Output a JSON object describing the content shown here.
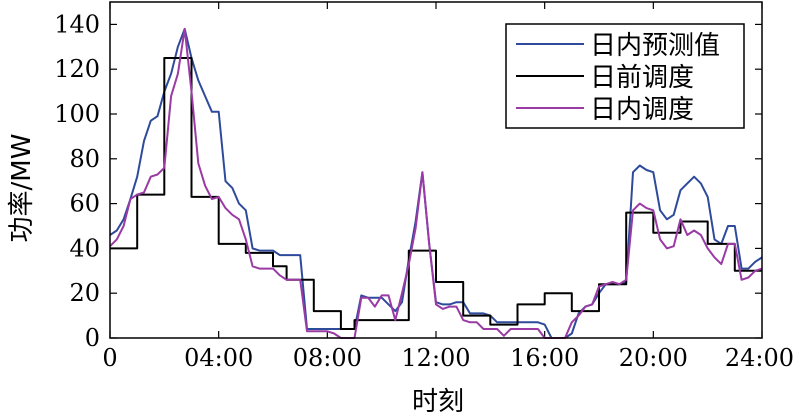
{
  "chart_data": {
    "type": "line",
    "xlabel": "时刻",
    "ylabel": "功率/MW",
    "xlim": [
      0,
      24
    ],
    "ylim": [
      0,
      150
    ],
    "x_ticks": [
      0,
      4,
      8,
      12,
      16,
      20,
      24
    ],
    "x_tick_labels": [
      "0",
      "04:00",
      "08:00",
      "12:00",
      "16:00",
      "20:00",
      "24:00"
    ],
    "y_ticks": [
      0,
      20,
      40,
      60,
      80,
      100,
      120,
      140
    ],
    "y_tick_labels": [
      "0",
      "20",
      "40",
      "60",
      "80",
      "100",
      "120",
      "140"
    ],
    "grid": false,
    "legend_position": "top-right",
    "series": [
      {
        "name": "日内预测值",
        "color": "#2e4a9b",
        "step": false,
        "points": [
          [
            0,
            46
          ],
          [
            0.25,
            48
          ],
          [
            0.5,
            53
          ],
          [
            0.75,
            62
          ],
          [
            1,
            72
          ],
          [
            1.25,
            88
          ],
          [
            1.5,
            97
          ],
          [
            1.75,
            99
          ],
          [
            2,
            110
          ],
          [
            2.25,
            118
          ],
          [
            2.5,
            130
          ],
          [
            2.75,
            138
          ],
          [
            3,
            125
          ],
          [
            3.25,
            115
          ],
          [
            3.5,
            108
          ],
          [
            3.75,
            101
          ],
          [
            4,
            101
          ],
          [
            4.25,
            70
          ],
          [
            4.5,
            67
          ],
          [
            4.75,
            60
          ],
          [
            5,
            57
          ],
          [
            5.25,
            40
          ],
          [
            5.5,
            39
          ],
          [
            5.75,
            39
          ],
          [
            6,
            39
          ],
          [
            6.25,
            37
          ],
          [
            6.5,
            37
          ],
          [
            6.75,
            37
          ],
          [
            7,
            37
          ],
          [
            7.25,
            4
          ],
          [
            7.5,
            4
          ],
          [
            7.75,
            4
          ],
          [
            8,
            4
          ],
          [
            8.25,
            4
          ],
          [
            8.5,
            4
          ],
          [
            8.75,
            4
          ],
          [
            9,
            4
          ],
          [
            9.25,
            19
          ],
          [
            9.5,
            18
          ],
          [
            9.75,
            18
          ],
          [
            10,
            18
          ],
          [
            10.25,
            15
          ],
          [
            10.5,
            12
          ],
          [
            10.75,
            16
          ],
          [
            11,
            35
          ],
          [
            11.25,
            52
          ],
          [
            11.5,
            74
          ],
          [
            11.75,
            42
          ],
          [
            12,
            16
          ],
          [
            12.25,
            15
          ],
          [
            12.5,
            15
          ],
          [
            12.75,
            16
          ],
          [
            13,
            16
          ],
          [
            13.25,
            11
          ],
          [
            13.5,
            11
          ],
          [
            13.75,
            11
          ],
          [
            14,
            10
          ],
          [
            14.25,
            7
          ],
          [
            14.5,
            7
          ],
          [
            14.75,
            7
          ],
          [
            15,
            7
          ],
          [
            15.25,
            7
          ],
          [
            15.5,
            7
          ],
          [
            15.75,
            7
          ],
          [
            16,
            6
          ],
          [
            16.25,
            0
          ],
          [
            16.5,
            0
          ],
          [
            16.75,
            0
          ],
          [
            17,
            2
          ],
          [
            17.25,
            11
          ],
          [
            17.5,
            14
          ],
          [
            17.75,
            15
          ],
          [
            18,
            20
          ],
          [
            18.25,
            24
          ],
          [
            18.5,
            24
          ],
          [
            18.75,
            24
          ],
          [
            19,
            25
          ],
          [
            19.25,
            74
          ],
          [
            19.5,
            77
          ],
          [
            19.75,
            75
          ],
          [
            20,
            74
          ],
          [
            20.25,
            57
          ],
          [
            20.5,
            53
          ],
          [
            20.75,
            55
          ],
          [
            21,
            66
          ],
          [
            21.25,
            69
          ],
          [
            21.5,
            72
          ],
          [
            21.75,
            69
          ],
          [
            22,
            63
          ],
          [
            22.25,
            44
          ],
          [
            22.5,
            42
          ],
          [
            22.75,
            50
          ],
          [
            23,
            50
          ],
          [
            23.25,
            31
          ],
          [
            23.5,
            31
          ],
          [
            23.75,
            34
          ],
          [
            24,
            36
          ]
        ]
      },
      {
        "name": "日前调度",
        "color": "#000000",
        "step": true,
        "points": [
          [
            0,
            40
          ],
          [
            1,
            40
          ],
          [
            1,
            64
          ],
          [
            2,
            64
          ],
          [
            2,
            125
          ],
          [
            3,
            125
          ],
          [
            3,
            63
          ],
          [
            4,
            63
          ],
          [
            4,
            42
          ],
          [
            5,
            42
          ],
          [
            5,
            38
          ],
          [
            6,
            38
          ],
          [
            6,
            32
          ],
          [
            6.5,
            32
          ],
          [
            6.5,
            26
          ],
          [
            7.5,
            26
          ],
          [
            7.5,
            12
          ],
          [
            8.5,
            12
          ],
          [
            8.5,
            4
          ],
          [
            9,
            4
          ],
          [
            9,
            8
          ],
          [
            10,
            8
          ],
          [
            10,
            8
          ],
          [
            11,
            8
          ],
          [
            11,
            39
          ],
          [
            12,
            39
          ],
          [
            12,
            25
          ],
          [
            13,
            25
          ],
          [
            13,
            10
          ],
          [
            14,
            10
          ],
          [
            14,
            6
          ],
          [
            15,
            6
          ],
          [
            15,
            15
          ],
          [
            16,
            15
          ],
          [
            16,
            20
          ],
          [
            17,
            20
          ],
          [
            17,
            12
          ],
          [
            18,
            12
          ],
          [
            18,
            24
          ],
          [
            19,
            24
          ],
          [
            19,
            56
          ],
          [
            20,
            56
          ],
          [
            20,
            47
          ],
          [
            21,
            47
          ],
          [
            21,
            52
          ],
          [
            22,
            52
          ],
          [
            22,
            42
          ],
          [
            23,
            42
          ],
          [
            23,
            30
          ],
          [
            24,
            30
          ]
        ]
      },
      {
        "name": "日内调度",
        "color": "#9a3aa4",
        "step": false,
        "points": [
          [
            0,
            41
          ],
          [
            0.25,
            44
          ],
          [
            0.5,
            50
          ],
          [
            0.75,
            62
          ],
          [
            1,
            64
          ],
          [
            1.25,
            65
          ],
          [
            1.5,
            72
          ],
          [
            1.75,
            73
          ],
          [
            2,
            76
          ],
          [
            2.25,
            108
          ],
          [
            2.5,
            118
          ],
          [
            2.75,
            138
          ],
          [
            3,
            110
          ],
          [
            3.25,
            78
          ],
          [
            3.5,
            68
          ],
          [
            3.75,
            62
          ],
          [
            4,
            63
          ],
          [
            4.25,
            58
          ],
          [
            4.5,
            55
          ],
          [
            4.75,
            53
          ],
          [
            5,
            44
          ],
          [
            5.25,
            32
          ],
          [
            5.5,
            31
          ],
          [
            5.75,
            31
          ],
          [
            6,
            31
          ],
          [
            6.25,
            28
          ],
          [
            6.5,
            26
          ],
          [
            6.75,
            26
          ],
          [
            7,
            26
          ],
          [
            7.25,
            3
          ],
          [
            7.5,
            3
          ],
          [
            7.75,
            3
          ],
          [
            8,
            3
          ],
          [
            8.25,
            2
          ],
          [
            8.5,
            0
          ],
          [
            8.75,
            0
          ],
          [
            9,
            0
          ],
          [
            9.25,
            18
          ],
          [
            9.5,
            18
          ],
          [
            9.75,
            14
          ],
          [
            10,
            19
          ],
          [
            10.25,
            19
          ],
          [
            10.5,
            8
          ],
          [
            10.75,
            20
          ],
          [
            11,
            33
          ],
          [
            11.25,
            49
          ],
          [
            11.5,
            74
          ],
          [
            11.75,
            42
          ],
          [
            12,
            15
          ],
          [
            12.25,
            13
          ],
          [
            12.5,
            14
          ],
          [
            12.75,
            14
          ],
          [
            13,
            8
          ],
          [
            13.25,
            7
          ],
          [
            13.5,
            7
          ],
          [
            13.75,
            4
          ],
          [
            14,
            4
          ],
          [
            14.25,
            4
          ],
          [
            14.5,
            1
          ],
          [
            14.75,
            4
          ],
          [
            15,
            4
          ],
          [
            15.25,
            4
          ],
          [
            15.5,
            4
          ],
          [
            15.75,
            4
          ],
          [
            16,
            0
          ],
          [
            16.25,
            0
          ],
          [
            16.5,
            0
          ],
          [
            16.75,
            0
          ],
          [
            17,
            7
          ],
          [
            17.25,
            10
          ],
          [
            17.5,
            14
          ],
          [
            17.75,
            15
          ],
          [
            18,
            23
          ],
          [
            18.25,
            24
          ],
          [
            18.5,
            25
          ],
          [
            18.75,
            24
          ],
          [
            19,
            26
          ],
          [
            19.25,
            57
          ],
          [
            19.5,
            60
          ],
          [
            19.75,
            58
          ],
          [
            20,
            57
          ],
          [
            20.25,
            44
          ],
          [
            20.5,
            40
          ],
          [
            20.75,
            41
          ],
          [
            21,
            53
          ],
          [
            21.25,
            46
          ],
          [
            21.5,
            48
          ],
          [
            21.75,
            46
          ],
          [
            22,
            40
          ],
          [
            22.25,
            36
          ],
          [
            22.5,
            33
          ],
          [
            22.75,
            42
          ],
          [
            23,
            42
          ],
          [
            23.25,
            26
          ],
          [
            23.5,
            27
          ],
          [
            23.75,
            30
          ],
          [
            24,
            31
          ]
        ]
      }
    ]
  }
}
